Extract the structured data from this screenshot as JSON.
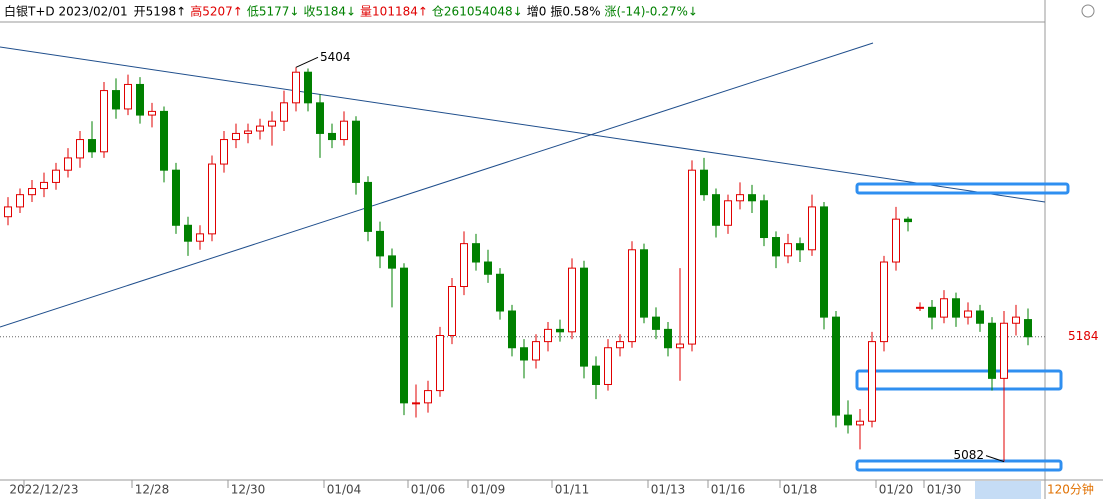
{
  "chart_data": {
    "type": "candlestick",
    "header_items": [
      {
        "text": "白银T+D 2023/02/01",
        "color": "#000000"
      },
      {
        "text": "开5198↑",
        "color": "#000000"
      },
      {
        "text": "高5207↑",
        "color": "#e00000"
      },
      {
        "text": "低5177↓",
        "color": "#008000"
      },
      {
        "text": "收5184↓",
        "color": "#008000"
      },
      {
        "text": "量101184↑",
        "color": "#e00000"
      },
      {
        "text": "仓261054048↓",
        "color": "#008000"
      },
      {
        "text": "增0",
        "color": "#000000"
      },
      {
        "text": "振0.58%",
        "color": "#000000"
      },
      {
        "text": "涨(-14)-0.27%↓",
        "color": "#008000"
      }
    ],
    "up_color": "#e00000",
    "down_color": "#008000",
    "ylim": [
      5067,
      5441
    ],
    "last_price": 5184,
    "max_label": 5404,
    "min_label": 5082,
    "period": "120分钟",
    "categories": [
      null,
      null,
      null,
      "2022/12/23",
      null,
      null,
      null,
      null,
      null,
      null,
      null,
      null,
      "12/28",
      null,
      null,
      null,
      null,
      null,
      null,
      null,
      "12/30",
      null,
      null,
      null,
      null,
      null,
      null,
      null,
      "01/04",
      null,
      null,
      null,
      null,
      null,
      null,
      "01/06",
      null,
      null,
      null,
      null,
      "01/09",
      null,
      null,
      null,
      null,
      null,
      null,
      "01/11",
      null,
      null,
      null,
      null,
      null,
      null,
      null,
      "01/13",
      null,
      null,
      null,
      null,
      "01/16",
      null,
      null,
      null,
      null,
      null,
      "01/18",
      null,
      null,
      null,
      null,
      null,
      null,
      null,
      "01/20",
      null,
      null,
      null,
      "01/30",
      null,
      null,
      null,
      null,
      null,
      null,
      null
    ],
    "candles": [
      [
        5282,
        5298,
        5275,
        5290
      ],
      [
        5290,
        5305,
        5285,
        5300
      ],
      [
        5300,
        5312,
        5294,
        5305
      ],
      [
        5305,
        5318,
        5298,
        5310
      ],
      [
        5310,
        5326,
        5304,
        5320
      ],
      [
        5320,
        5338,
        5314,
        5330
      ],
      [
        5330,
        5352,
        5322,
        5345
      ],
      [
        5345,
        5360,
        5330,
        5335
      ],
      [
        5335,
        5392,
        5330,
        5385
      ],
      [
        5385,
        5395,
        5362,
        5370
      ],
      [
        5370,
        5398,
        5365,
        5390
      ],
      [
        5390,
        5396,
        5358,
        5365
      ],
      [
        5365,
        5375,
        5355,
        5368
      ],
      [
        5368,
        5372,
        5310,
        5320
      ],
      [
        5320,
        5326,
        5268,
        5275
      ],
      [
        5275,
        5282,
        5250,
        5262
      ],
      [
        5262,
        5275,
        5255,
        5268
      ],
      [
        5268,
        5332,
        5262,
        5325
      ],
      [
        5325,
        5352,
        5318,
        5345
      ],
      [
        5345,
        5358,
        5338,
        5350
      ],
      [
        5350,
        5358,
        5342,
        5352
      ],
      [
        5352,
        5362,
        5345,
        5356
      ],
      [
        5356,
        5368,
        5340,
        5360
      ],
      [
        5360,
        5385,
        5352,
        5375
      ],
      [
        5375,
        5404,
        5368,
        5400
      ],
      [
        5400,
        5403,
        5368,
        5375
      ],
      [
        5375,
        5382,
        5330,
        5350
      ],
      [
        5350,
        5358,
        5338,
        5345
      ],
      [
        5345,
        5368,
        5340,
        5360
      ],
      [
        5360,
        5364,
        5300,
        5310
      ],
      [
        5310,
        5315,
        5262,
        5270
      ],
      [
        5270,
        5278,
        5240,
        5250
      ],
      [
        5250,
        5256,
        5208,
        5240
      ],
      [
        5240,
        5244,
        5120,
        5130
      ],
      [
        5130,
        5145,
        5118,
        5130
      ],
      [
        5130,
        5148,
        5122,
        5140
      ],
      [
        5140,
        5192,
        5135,
        5185
      ],
      [
        5185,
        5232,
        5178,
        5225
      ],
      [
        5225,
        5270,
        5218,
        5260
      ],
      [
        5260,
        5268,
        5238,
        5245
      ],
      [
        5245,
        5255,
        5228,
        5235
      ],
      [
        5235,
        5240,
        5198,
        5205
      ],
      [
        5205,
        5210,
        5168,
        5175
      ],
      [
        5175,
        5182,
        5150,
        5165
      ],
      [
        5165,
        5186,
        5158,
        5180
      ],
      [
        5180,
        5196,
        5172,
        5190
      ],
      [
        5190,
        5198,
        5180,
        5188
      ],
      [
        5188,
        5248,
        5182,
        5240
      ],
      [
        5240,
        5246,
        5150,
        5160
      ],
      [
        5160,
        5168,
        5133,
        5145
      ],
      [
        5145,
        5182,
        5140,
        5175
      ],
      [
        5175,
        5186,
        5168,
        5180
      ],
      [
        5180,
        5262,
        5175,
        5255
      ],
      [
        5255,
        5260,
        5195,
        5200
      ],
      [
        5200,
        5208,
        5182,
        5190
      ],
      [
        5190,
        5196,
        5168,
        5175
      ],
      [
        5175,
        5240,
        5148,
        5178
      ],
      [
        5178,
        5328,
        5172,
        5320
      ],
      [
        5320,
        5330,
        5295,
        5300
      ],
      [
        5300,
        5305,
        5265,
        5275
      ],
      [
        5275,
        5300,
        5268,
        5295
      ],
      [
        5295,
        5310,
        5288,
        5300
      ],
      [
        5300,
        5308,
        5285,
        5295
      ],
      [
        5295,
        5300,
        5258,
        5265
      ],
      [
        5265,
        5270,
        5240,
        5250
      ],
      [
        5250,
        5268,
        5244,
        5260
      ],
      [
        5260,
        5265,
        5245,
        5255
      ],
      [
        5255,
        5300,
        5250,
        5290
      ],
      [
        5290,
        5294,
        5190,
        5200
      ],
      [
        5200,
        5205,
        5110,
        5120
      ],
      [
        5120,
        5132,
        5105,
        5112
      ],
      [
        5112,
        5125,
        5092,
        5115
      ],
      [
        5115,
        5188,
        5110,
        5180
      ],
      [
        5180,
        5250,
        5172,
        5245
      ],
      [
        5245,
        5290,
        5238,
        5280
      ],
      [
        5280,
        5282,
        5270,
        5278
      ],
      [
        5208,
        5212,
        5205,
        5208
      ],
      [
        5208,
        5214,
        5190,
        5200
      ],
      [
        5200,
        5222,
        5195,
        5215
      ],
      [
        5215,
        5220,
        5192,
        5200
      ],
      [
        5200,
        5212,
        5194,
        5205
      ],
      [
        5205,
        5210,
        5188,
        5195
      ],
      [
        5195,
        5200,
        5140,
        5150
      ],
      [
        5150,
        5205,
        5082,
        5195
      ],
      [
        5195,
        5210,
        5185,
        5200
      ],
      [
        5198,
        5207,
        5177,
        5184
      ]
    ]
  }
}
